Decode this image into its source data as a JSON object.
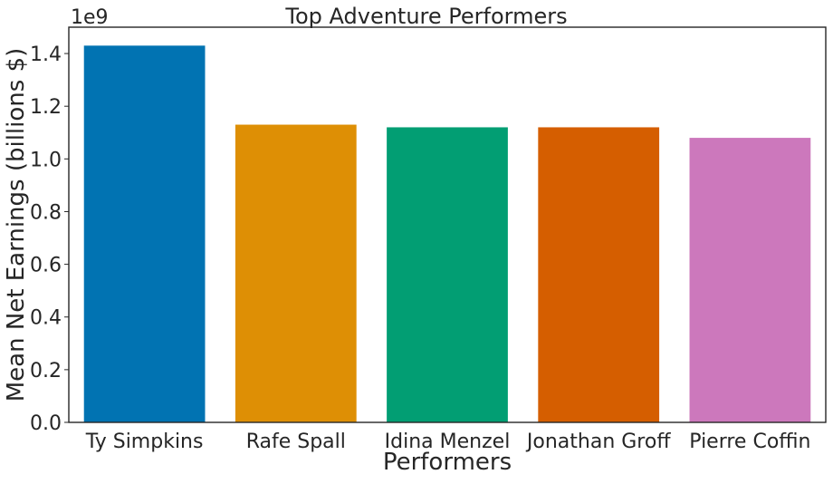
{
  "chart_data": {
    "type": "bar",
    "title": "Top Adventure Performers",
    "xlabel": "Performers",
    "ylabel": "Mean Net Earnings (billions $)",
    "offset_text": "1e9",
    "categories": [
      "Ty Simpkins",
      "Rafe Spall",
      "Idina Menzel",
      "Jonathan Groff",
      "Pierre Coffin"
    ],
    "values": [
      1.43,
      1.13,
      1.12,
      1.12,
      1.08
    ],
    "value_scale": 1000000000,
    "colors": [
      "#0173b2",
      "#de8f05",
      "#029e73",
      "#d55e00",
      "#cc78bc"
    ],
    "ylim": [
      0,
      1.5
    ],
    "yticks": [
      0.0,
      0.2,
      0.4,
      0.6,
      0.8,
      1.0,
      1.2,
      1.4
    ],
    "ytick_labels": [
      "0.0",
      "0.2",
      "0.4",
      "0.6",
      "0.8",
      "1.0",
      "1.2",
      "1.4"
    ],
    "grid": false,
    "legend": "none"
  }
}
